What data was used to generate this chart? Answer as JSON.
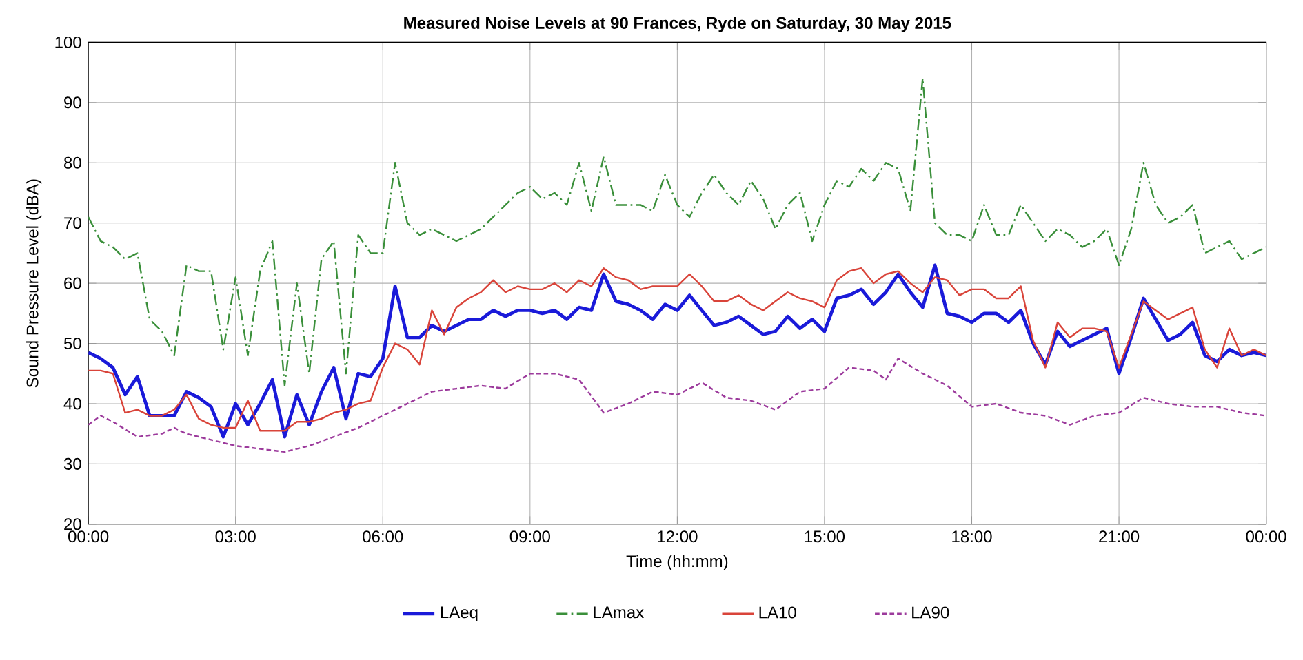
{
  "chart_data": {
    "type": "line",
    "title": "Measured Noise Levels at 90 Frances, Ryde on Saturday, 30 May 2015",
    "xlabel": "Time (hh:mm)",
    "ylabel": "Sound Pressure Level (dBA)",
    "x": [
      0,
      0.25,
      0.5,
      0.75,
      1,
      1.25,
      1.5,
      1.75,
      2,
      2.25,
      2.5,
      2.75,
      3,
      3.25,
      3.5,
      3.75,
      4,
      4.25,
      4.5,
      4.75,
      5,
      5.25,
      5.5,
      5.75,
      6,
      6.25,
      6.5,
      6.75,
      7,
      7.25,
      7.5,
      7.75,
      8,
      8.25,
      8.5,
      8.75,
      9,
      9.25,
      9.5,
      9.75,
      10,
      10.25,
      10.5,
      10.75,
      11,
      11.25,
      11.5,
      11.75,
      12,
      12.25,
      12.5,
      12.75,
      13,
      13.25,
      13.5,
      13.75,
      14,
      14.25,
      14.5,
      14.75,
      15,
      15.25,
      15.5,
      15.75,
      16,
      16.25,
      16.5,
      16.75,
      17,
      17.25,
      17.5,
      17.75,
      18,
      18.25,
      18.5,
      18.75,
      19,
      19.25,
      19.5,
      19.75,
      20,
      20.25,
      20.5,
      20.75,
      21,
      21.25,
      21.5,
      21.75,
      22,
      22.25,
      22.5,
      22.75,
      23,
      23.25,
      23.5,
      23.75,
      24
    ],
    "series": [
      {
        "name": "LAeq",
        "color": "#1a1ad9",
        "line_style": "solid",
        "values": [
          48.5,
          47.5,
          46,
          41.5,
          44.5,
          38,
          38,
          38,
          42,
          41,
          39.5,
          34.5,
          40,
          36.5,
          40,
          44,
          34.5,
          41.5,
          36.5,
          42,
          46,
          37.5,
          45,
          44.5,
          47.5,
          59.5,
          51,
          51,
          53,
          52,
          53,
          54,
          54,
          55.5,
          54.5,
          55.5,
          55.5,
          55,
          55.5,
          54,
          56,
          55.5,
          61.5,
          57,
          56.5,
          55.5,
          54,
          56.5,
          55.5,
          58,
          55.5,
          53,
          53.5,
          54.5,
          53,
          51.5,
          52,
          54.5,
          52.5,
          54,
          52,
          57.5,
          58,
          59,
          56.5,
          58.5,
          61.5,
          58.5,
          56,
          63,
          55,
          54.5,
          53.5,
          55,
          55,
          53.5,
          55.5,
          50,
          46.5,
          52,
          49.5,
          50.5,
          51.5,
          52.5,
          45,
          51,
          57.5,
          54,
          50.5,
          51.5,
          53.5,
          48,
          47,
          49,
          48,
          48.5,
          48
        ]
      },
      {
        "name": "LAmax",
        "color": "#3a8f3a",
        "line_style": "dashed",
        "values": [
          71,
          67,
          66,
          64,
          65,
          54,
          52,
          48,
          63,
          62,
          62,
          49,
          61,
          48,
          62,
          67,
          43,
          60,
          45,
          64,
          67,
          45,
          68,
          65,
          65,
          80,
          70,
          68,
          69,
          68,
          67,
          68,
          69,
          71,
          73,
          75,
          76,
          74,
          75,
          73,
          80,
          72,
          81,
          73,
          73,
          73,
          72,
          78,
          73,
          71,
          75,
          78,
          75,
          73,
          77,
          74,
          69,
          73,
          75,
          67,
          73,
          77,
          76,
          79,
          77,
          80,
          79,
          72,
          94,
          70,
          68,
          68,
          67,
          73,
          68,
          68,
          73,
          70,
          67,
          69,
          68,
          66,
          67,
          69,
          63,
          69,
          80,
          73,
          70,
          71,
          73,
          65,
          66,
          67,
          64,
          65,
          66
        ]
      },
      {
        "name": "LA10",
        "color": "#d9443a",
        "line_style": "solid",
        "values": [
          45.5,
          45.5,
          45,
          38.5,
          39,
          38,
          38,
          39,
          41.5,
          37.5,
          36.5,
          36,
          36,
          40.5,
          35.5,
          35.5,
          35.5,
          37,
          37,
          37.5,
          38.5,
          39,
          40,
          40.5,
          46,
          50,
          49,
          46.5,
          55.5,
          51.5,
          56,
          57.5,
          58.5,
          60.5,
          58.5,
          59.5,
          59,
          59,
          60,
          58.5,
          60.5,
          59.5,
          62.5,
          61,
          60.5,
          59,
          59.5,
          59.5,
          59.5,
          61.5,
          59.5,
          57,
          57,
          58,
          56.5,
          55.5,
          57,
          58.5,
          57.5,
          57,
          56,
          60.5,
          62,
          62.5,
          60,
          61.5,
          62,
          60,
          58.5,
          61,
          60.5,
          58,
          59,
          59,
          57.5,
          57.5,
          59.5,
          50.5,
          46,
          53.5,
          51,
          52.5,
          52.5,
          52,
          46,
          51.5,
          57,
          55.5,
          54,
          55,
          56,
          49,
          46,
          52.5,
          48,
          49,
          48
        ]
      },
      {
        "name": "LA90",
        "color": "#9c3a9c",
        "line_style": "dotted",
        "x": [
          0,
          0.25,
          0.5,
          1,
          1.5,
          1.75,
          2,
          2.5,
          3,
          3.5,
          4,
          4.5,
          5,
          5.5,
          6,
          6.5,
          7,
          7.5,
          8,
          8.5,
          9,
          9.5,
          10,
          10.5,
          11,
          11.5,
          12,
          12.5,
          13,
          13.5,
          14,
          14.5,
          15,
          15.5,
          16,
          16.25,
          16.5,
          17,
          17.5,
          18,
          18.5,
          19,
          19.5,
          20,
          20.5,
          21,
          21.5,
          22,
          22.5,
          23,
          23.5,
          24
        ],
        "values": [
          36.5,
          38,
          37,
          34.5,
          35,
          36,
          35,
          34,
          33,
          32.5,
          32,
          33,
          34.5,
          36,
          38,
          40,
          42,
          42.5,
          43,
          42.5,
          45,
          45,
          44,
          38.5,
          40,
          42,
          41.5,
          43.5,
          41,
          40.5,
          39,
          42,
          42.5,
          46,
          45.5,
          44,
          47.5,
          45,
          43,
          39.5,
          40,
          38.5,
          38,
          36.5,
          38,
          38.5,
          41,
          40,
          39.5,
          39.5,
          38.5,
          38
        ]
      }
    ],
    "xlim": [
      0,
      24
    ],
    "xticks": [
      {
        "value": 0,
        "label": "00:00"
      },
      {
        "value": 3,
        "label": "03:00"
      },
      {
        "value": 6,
        "label": "06:00"
      },
      {
        "value": 9,
        "label": "09:00"
      },
      {
        "value": 12,
        "label": "12:00"
      },
      {
        "value": 15,
        "label": "15:00"
      },
      {
        "value": 18,
        "label": "18:00"
      },
      {
        "value": 21,
        "label": "21:00"
      },
      {
        "value": 24,
        "label": "00:00"
      }
    ],
    "ylim": [
      20,
      100
    ],
    "yticks": [
      20,
      30,
      40,
      50,
      60,
      70,
      80,
      90,
      100
    ],
    "grid": true,
    "legend": "bottom",
    "marker": "none"
  }
}
